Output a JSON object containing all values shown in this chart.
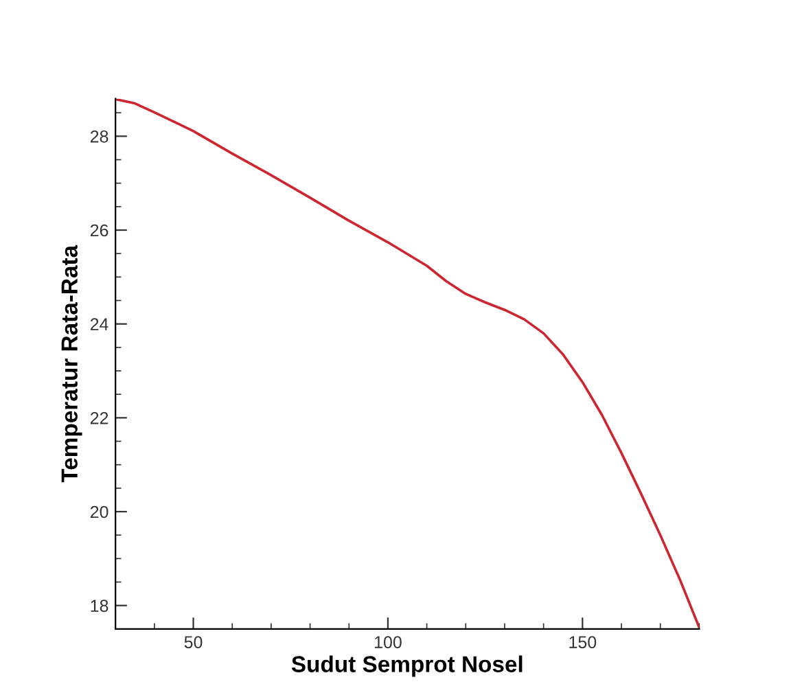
{
  "chart_data": {
    "type": "line",
    "xlabel": "Sudut Semprot Nosel",
    "ylabel": "Temperatur Rata-Rata",
    "xlim": [
      30,
      180
    ],
    "xticks": [
      50,
      100,
      150
    ],
    "ylim": [
      17.5,
      28.8
    ],
    "yticks": [
      18,
      20,
      22,
      24,
      26,
      28
    ],
    "grid": false,
    "legend": false,
    "marker": "none",
    "line_style": "solid",
    "series": [
      {
        "color": "#cc2630",
        "x": [
          30,
          35,
          40,
          50,
          60,
          70,
          80,
          90,
          100,
          110,
          115,
          120,
          125,
          130,
          135,
          140,
          145,
          150,
          155,
          160,
          165,
          170,
          175,
          180
        ],
        "values": [
          28.79,
          28.7,
          28.51,
          28.11,
          27.63,
          27.17,
          26.69,
          26.2,
          25.74,
          25.24,
          24.91,
          24.64,
          24.46,
          24.3,
          24.1,
          23.8,
          23.35,
          22.76,
          22.06,
          21.25,
          20.39,
          19.5,
          18.56,
          17.53
        ]
      }
    ]
  }
}
